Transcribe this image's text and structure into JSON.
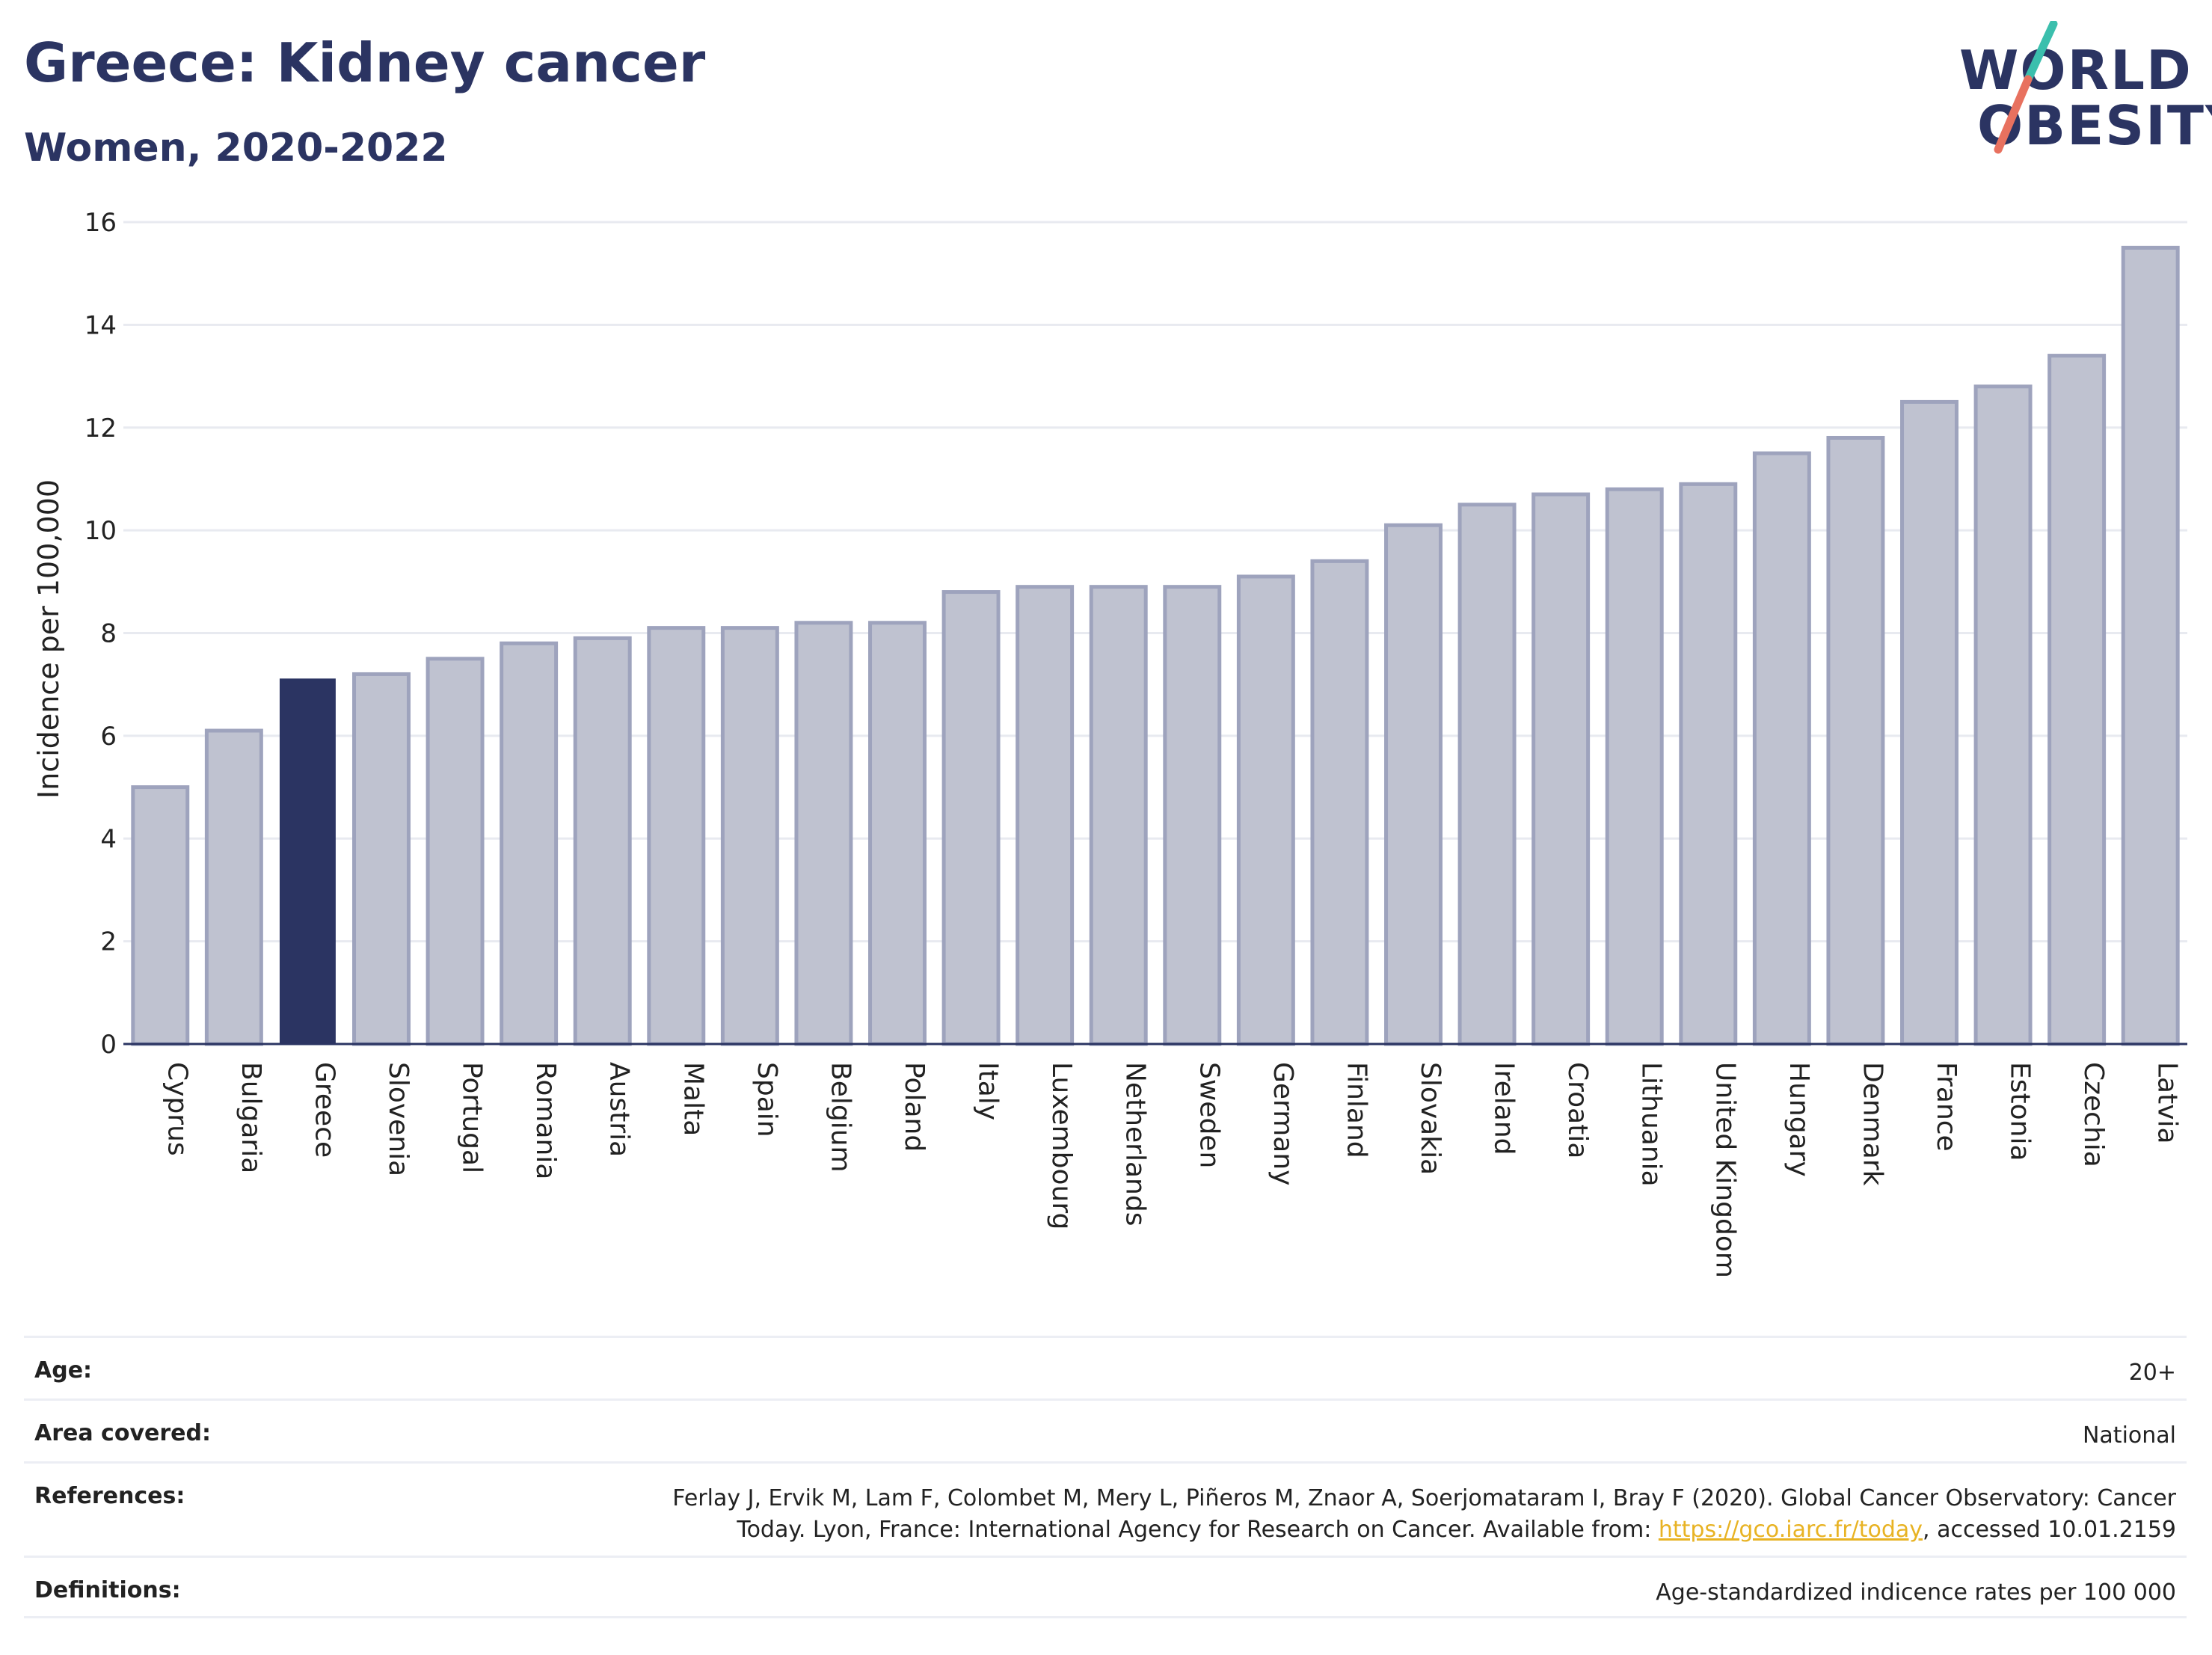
{
  "header": {
    "title": "Greece: Kidney cancer",
    "subtitle": "Women, 2020-2022"
  },
  "logo": {
    "line1": "WORLD",
    "line2": "OBESITY",
    "slash_colors": [
      "#3bbfad",
      "#e8715f"
    ]
  },
  "chart_data": {
    "type": "bar",
    "categories": [
      "Cyprus",
      "Bulgaria",
      "Greece",
      "Slovenia",
      "Portugal",
      "Romania",
      "Austria",
      "Malta",
      "Spain",
      "Belgium",
      "Poland",
      "Italy",
      "Luxembourg",
      "Netherlands",
      "Sweden",
      "Germany",
      "Finland",
      "Slovakia",
      "Ireland",
      "Croatia",
      "Lithuania",
      "United Kingdom",
      "Hungary",
      "Denmark",
      "France",
      "Estonia",
      "Czechia",
      "Latvia"
    ],
    "values": [
      5.0,
      6.1,
      7.1,
      7.2,
      7.5,
      7.8,
      7.9,
      8.1,
      8.1,
      8.2,
      8.2,
      8.8,
      8.9,
      8.9,
      8.9,
      9.1,
      9.4,
      10.1,
      10.5,
      10.7,
      10.8,
      10.9,
      11.5,
      11.8,
      12.5,
      12.8,
      13.4,
      15.5
    ],
    "highlight": "Greece",
    "ylabel": "Incidence per 100,000",
    "xlabel": "",
    "ylim": [
      0,
      16
    ],
    "yticks": [
      0,
      2,
      4,
      6,
      8,
      10,
      12,
      14,
      16
    ],
    "grid": true,
    "colors": {
      "bar_fill": "#bfc2d0",
      "bar_stroke": "#9ea3bd",
      "highlight_fill": "#2b3462",
      "axis": "#2b3462",
      "grid": "#e8eaf0"
    }
  },
  "info": {
    "age_label": "Age:",
    "age_value": "20+",
    "area_label": "Area covered:",
    "area_value": "National",
    "references_label": "References:",
    "references_line1": "Ferlay J, Ervik M, Lam F, Colombet M, Mery L, Piñeros M, Znaor A, Soerjomataram I, Bray F (2020). Global Cancer Observatory: Cancer",
    "references_line2_pre": "Today. Lyon, France: International Agency for Research on Cancer. Available from: ",
    "references_link": "https://gco.iarc.fr/today",
    "references_line2_post": ", accessed 10.01.2159",
    "definitions_label": "Definitions:",
    "definitions_value": "Age-standardized indicence rates per 100 000"
  }
}
